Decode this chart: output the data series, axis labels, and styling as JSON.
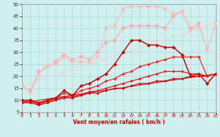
{
  "xlabel": "Vent moyen/en rafales ( km/h )",
  "xlim": [
    0,
    23
  ],
  "ylim": [
    5,
    50
  ],
  "yticks": [
    5,
    10,
    15,
    20,
    25,
    30,
    35,
    40,
    45,
    50
  ],
  "xticks": [
    0,
    1,
    2,
    3,
    4,
    5,
    6,
    7,
    8,
    9,
    10,
    11,
    12,
    13,
    14,
    15,
    16,
    17,
    18,
    19,
    20,
    21,
    22,
    23
  ],
  "background_color": "#cff0ee",
  "grid_color": "#aadcda",
  "series": [
    {
      "x": [
        0,
        1,
        2,
        3,
        4,
        5,
        6,
        7,
        8,
        9,
        10,
        11,
        12,
        13,
        14,
        15,
        16,
        17,
        18,
        19,
        20,
        21,
        22,
        23
      ],
      "y": [
        9,
        9,
        8,
        9,
        10,
        11,
        11,
        12,
        13,
        13,
        14,
        15,
        15,
        16,
        17,
        17,
        18,
        18,
        19,
        19,
        20,
        20,
        20,
        21
      ],
      "color": "#cc0000",
      "linewidth": 0.9,
      "marker": "D",
      "markersize": 1.8,
      "zorder": 4
    },
    {
      "x": [
        0,
        1,
        2,
        3,
        4,
        5,
        6,
        7,
        8,
        9,
        10,
        11,
        12,
        13,
        14,
        15,
        16,
        17,
        18,
        19,
        20,
        21,
        22,
        23
      ],
      "y": [
        9.5,
        9.5,
        8.5,
        9.5,
        10.5,
        11.5,
        11.5,
        12.5,
        13.5,
        14,
        15,
        16,
        17,
        18,
        19,
        20,
        21,
        22,
        22,
        22,
        21,
        21,
        20,
        21
      ],
      "color": "#dd1111",
      "linewidth": 0.9,
      "marker": "D",
      "markersize": 1.8,
      "zorder": 4
    },
    {
      "x": [
        0,
        1,
        2,
        3,
        4,
        5,
        6,
        7,
        8,
        9,
        10,
        11,
        12,
        13,
        14,
        15,
        16,
        17,
        18,
        19,
        20,
        21,
        22,
        23
      ],
      "y": [
        10,
        10,
        9,
        10,
        11,
        13,
        12,
        14,
        15,
        16,
        18,
        19,
        21,
        22,
        24,
        25,
        26,
        27,
        28,
        28,
        28,
        28,
        20,
        21
      ],
      "color": "#ee2222",
      "linewidth": 0.9,
      "marker": "D",
      "markersize": 2.0,
      "zorder": 4
    },
    {
      "x": [
        0,
        1,
        2,
        3,
        4,
        5,
        6,
        7,
        8,
        9,
        10,
        11,
        12,
        13,
        14,
        15,
        16,
        17,
        18,
        19,
        20,
        21,
        22,
        23
      ],
      "y": [
        10,
        10,
        9,
        10,
        11,
        14,
        12,
        16,
        17,
        19,
        21,
        25,
        30,
        35,
        35,
        33,
        33,
        32,
        32,
        29,
        20,
        21,
        17,
        21
      ],
      "color": "#cc0000",
      "linewidth": 1.1,
      "marker": "D",
      "markersize": 2.5,
      "zorder": 5
    },
    {
      "x": [
        0,
        1,
        2,
        3,
        4,
        5,
        6,
        7,
        8,
        9,
        10,
        11,
        12,
        13,
        14,
        15,
        16,
        17,
        18,
        19,
        20,
        21,
        22,
        23
      ],
      "y": [
        16,
        14,
        22,
        24,
        26,
        29,
        27,
        28,
        27,
        30,
        34,
        35,
        40,
        41,
        41,
        41,
        41,
        40,
        45,
        47,
        40,
        42,
        31,
        42
      ],
      "color": "#ffaaaa",
      "linewidth": 0.8,
      "marker": "s",
      "markersize": 2.2,
      "zorder": 3
    },
    {
      "x": [
        0,
        1,
        2,
        3,
        4,
        5,
        6,
        7,
        8,
        9,
        10,
        11,
        12,
        13,
        14,
        15,
        16,
        17,
        18,
        19,
        20,
        21,
        22,
        23
      ],
      "y": [
        16,
        13,
        21,
        24,
        25,
        28,
        26,
        26,
        26,
        28,
        40,
        41,
        48,
        49,
        49,
        49,
        49,
        48,
        46,
        47,
        39,
        41,
        31,
        42
      ],
      "color": "#ffbbbb",
      "linewidth": 0.8,
      "marker": "s",
      "markersize": 2.2,
      "zorder": 3
    },
    {
      "x": [
        0,
        23
      ],
      "y": [
        16,
        42
      ],
      "color": "#ffcccc",
      "linewidth": 0.8,
      "marker": null,
      "markersize": 0,
      "zorder": 2
    },
    {
      "x": [
        0,
        23
      ],
      "y": [
        9,
        21
      ],
      "color": "#cc0000",
      "linewidth": 0.7,
      "marker": null,
      "markersize": 0,
      "zorder": 2
    }
  ]
}
